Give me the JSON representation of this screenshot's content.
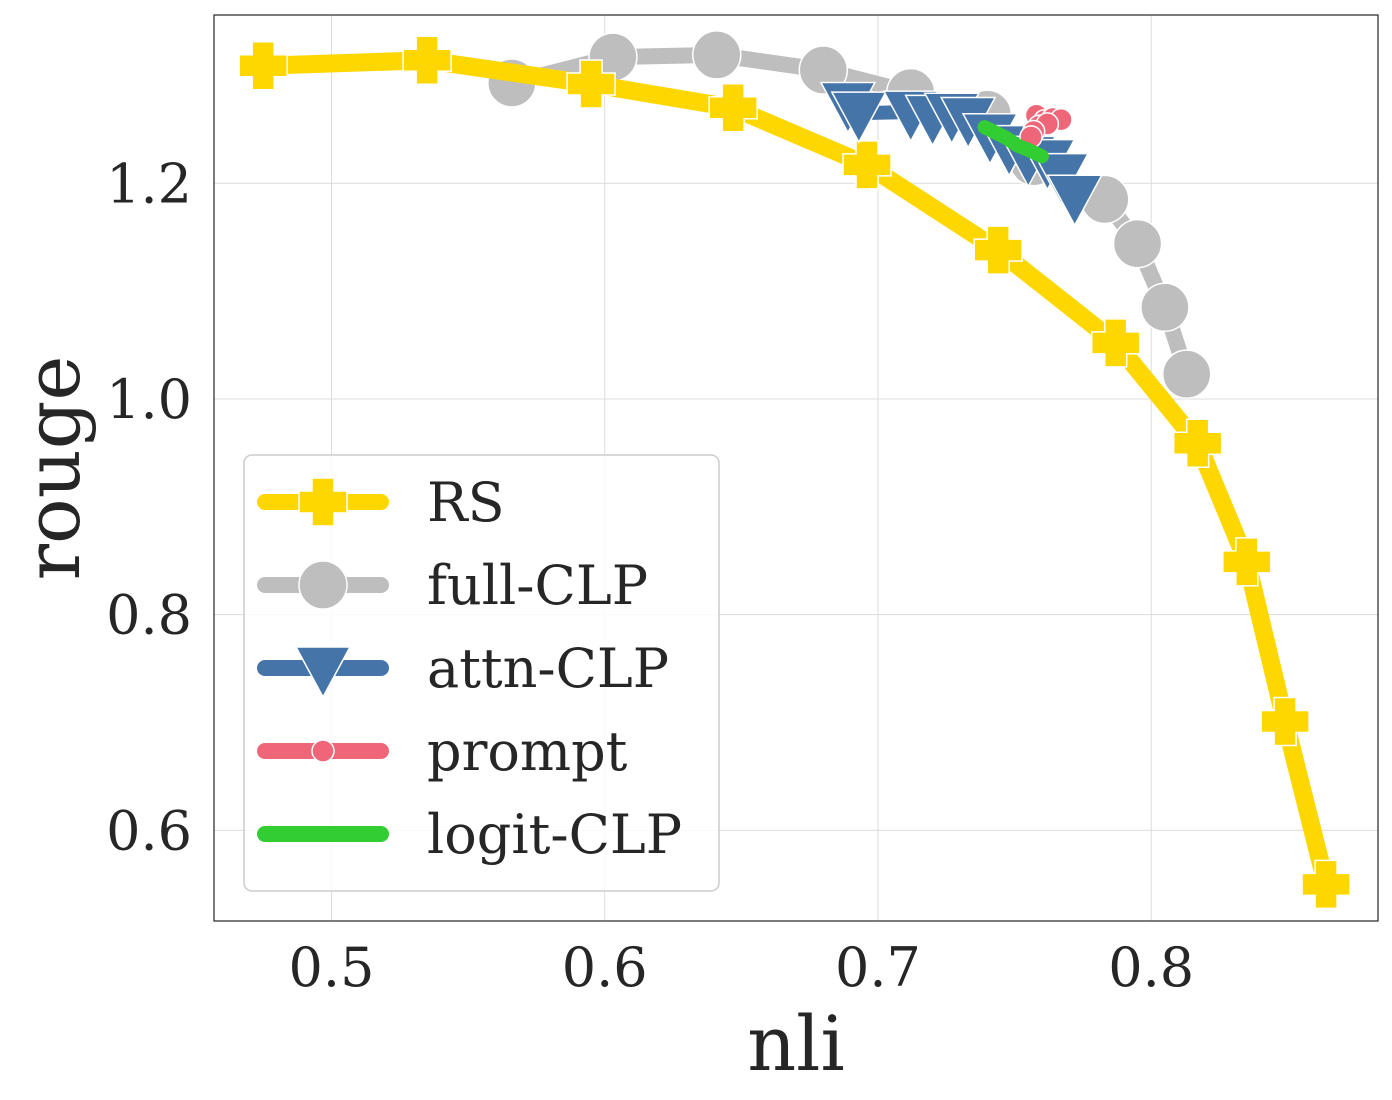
{
  "chart_data": {
    "type": "line",
    "title": "",
    "xlabel": "nli",
    "ylabel": "rouge",
    "xlim": [
      0.457,
      0.883
    ],
    "ylim": [
      0.516,
      1.356
    ],
    "xticks": [
      0.5,
      0.6,
      0.7,
      0.8
    ],
    "xtick_labels": [
      "0.5",
      "0.6",
      "0.7",
      "0.8"
    ],
    "yticks": [
      0.6,
      0.8,
      1.0,
      1.2
    ],
    "ytick_labels": [
      "0.6",
      "0.8",
      "1.0",
      "1.2"
    ],
    "grid": true,
    "legend_position": "lower-left",
    "series": [
      {
        "name": "RS",
        "color": "#FFD700",
        "marker": "plus",
        "x": [
          0.475,
          0.535,
          0.595,
          0.647,
          0.696,
          0.744,
          0.787,
          0.817,
          0.835,
          0.849,
          0.864
        ],
        "y": [
          1.309,
          1.314,
          1.292,
          1.27,
          1.217,
          1.138,
          1.052,
          0.959,
          0.849,
          0.701,
          0.55
        ]
      },
      {
        "name": "full-CLP",
        "color": "#BEBEBE",
        "marker": "circle",
        "x": [
          0.566,
          0.603,
          0.641,
          0.68,
          0.712,
          0.74,
          0.757,
          0.783,
          0.795,
          0.805,
          0.813
        ],
        "y": [
          1.293,
          1.317,
          1.319,
          1.305,
          1.284,
          1.264,
          1.22,
          1.185,
          1.144,
          1.085,
          1.023
        ]
      },
      {
        "name": "attn-CLP",
        "color": "#4575A8",
        "marker": "triangle-down",
        "x": [
          0.689,
          0.693,
          0.712,
          0.72,
          0.727,
          0.733,
          0.741,
          0.748,
          0.755,
          0.762,
          0.767,
          0.772
        ],
        "y": [
          1.274,
          1.265,
          1.266,
          1.262,
          1.264,
          1.26,
          1.245,
          1.234,
          1.224,
          1.221,
          1.208,
          1.188
        ]
      },
      {
        "name": "prompt",
        "color": "#EE6677",
        "marker": "circle-small",
        "x": [
          0.758,
          0.761,
          0.764,
          0.767,
          0.759,
          0.762,
          0.757,
          0.756
        ],
        "y": [
          1.263,
          1.258,
          1.26,
          1.259,
          1.253,
          1.255,
          1.248,
          1.243
        ]
      },
      {
        "name": "logit-CLP",
        "color": "#32CD32",
        "marker": "none",
        "x": [
          0.739,
          0.743,
          0.747,
          0.751,
          0.755,
          0.76
        ],
        "y": [
          1.252,
          1.247,
          1.242,
          1.235,
          1.231,
          1.225
        ]
      }
    ]
  }
}
